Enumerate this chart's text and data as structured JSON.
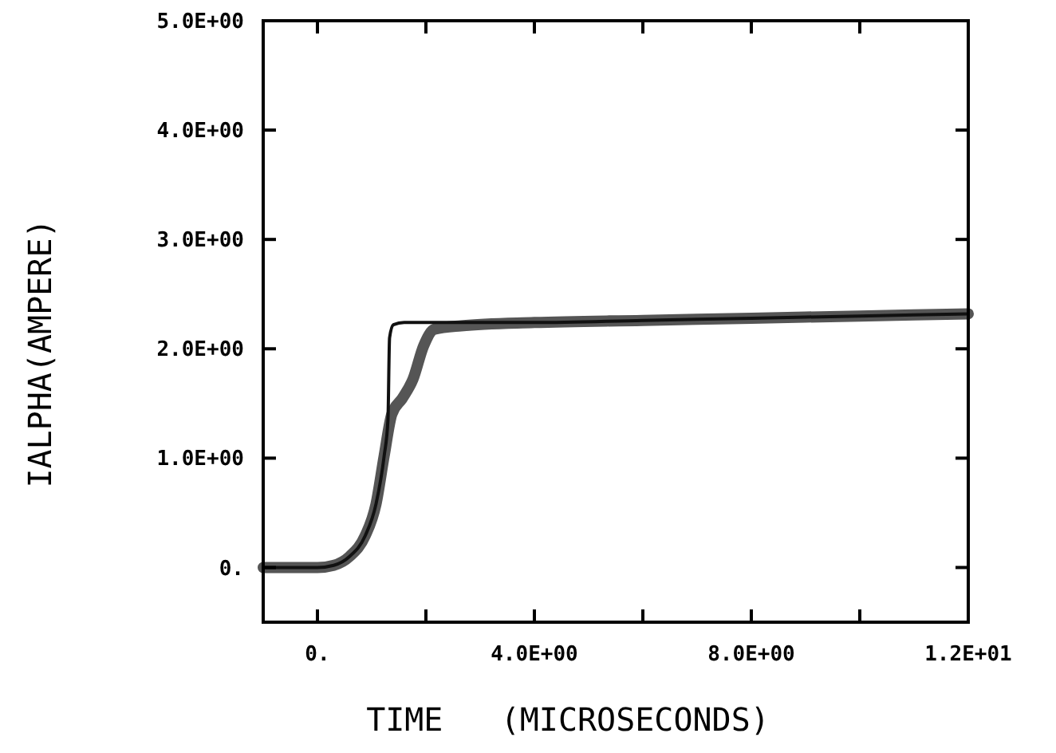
{
  "chart_data": {
    "type": "line",
    "xlabel": "TIME   (MICROSECONDS)",
    "ylabel": "IALPHA(AMPERE)",
    "xlim": [
      -1,
      12
    ],
    "ylim": [
      -0.5,
      5
    ],
    "xticks": [
      {
        "value": 0,
        "label": "0."
      },
      {
        "value": 2,
        "label": null
      },
      {
        "value": 4,
        "label": "4.0E+00"
      },
      {
        "value": 6,
        "label": null
      },
      {
        "value": 8,
        "label": "8.0E+00"
      },
      {
        "value": 10,
        "label": null
      },
      {
        "value": 12,
        "label": "1.2E+01"
      }
    ],
    "yticks": [
      {
        "value": 0,
        "label": "0."
      },
      {
        "value": 1,
        "label": "1.0E+00"
      },
      {
        "value": 2,
        "label": "2.0E+00"
      },
      {
        "value": 3,
        "label": "3.0E+00"
      },
      {
        "value": 4,
        "label": "4.0E+00"
      },
      {
        "value": 5,
        "label": "5.0E+00"
      }
    ],
    "grid": false,
    "line_style": "solid",
    "series": [
      {
        "color": "#555555",
        "x": [
          -1,
          0,
          0.3,
          0.59,
          0.88,
          1.08,
          1.23,
          1.37,
          1.57,
          1.76,
          1.96,
          2.16,
          2.65,
          4,
          6,
          8,
          10,
          12
        ],
        "values": [
          0,
          0,
          0.02,
          0.1,
          0.29,
          0.58,
          1.02,
          1.4,
          1.55,
          1.72,
          2.03,
          2.18,
          2.21,
          2.24,
          2.26,
          2.28,
          2.3,
          2.32
        ]
      },
      {
        "color": "#111111",
        "x": [
          -1,
          0,
          0.3,
          0.59,
          0.88,
          1.08,
          1.23,
          1.3,
          1.33,
          1.4,
          1.6,
          2.5,
          4,
          6,
          8,
          10,
          12
        ],
        "values": [
          0,
          0,
          0.02,
          0.1,
          0.29,
          0.58,
          1.02,
          1.35,
          2.1,
          2.22,
          2.24,
          2.24,
          2.24,
          2.26,
          2.28,
          2.3,
          2.32
        ]
      }
    ]
  }
}
